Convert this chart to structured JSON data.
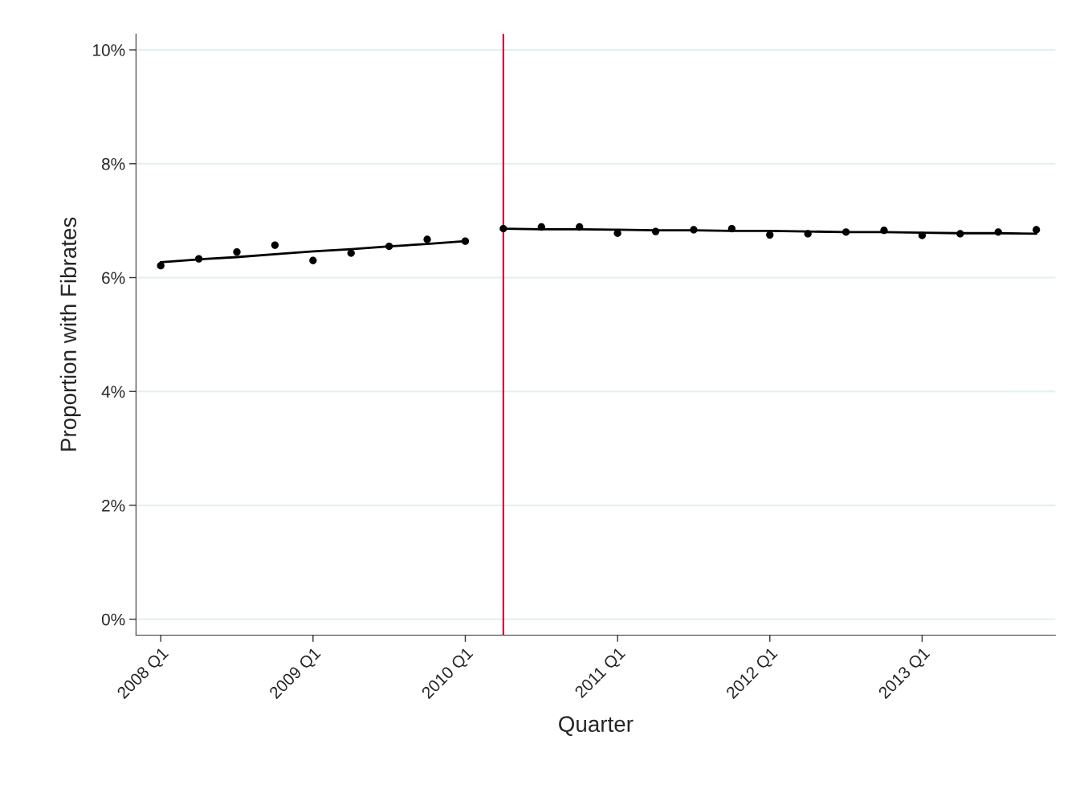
{
  "chart_data": {
    "type": "scatter",
    "xlabel": "Quarter",
    "ylabel": "Proportion with Fibrates",
    "categories": [
      "2008 Q1",
      null,
      null,
      null,
      "2009 Q1",
      null,
      null,
      null,
      "2010 Q1",
      null,
      null,
      null,
      "2011 Q1",
      null,
      null,
      null,
      "2012 Q1",
      null,
      null,
      null,
      "2013 Q1",
      null,
      null,
      null
    ],
    "ylim": [
      -0.28,
      10.28
    ],
    "yticks": [
      {
        "value": 0,
        "label": "0%"
      },
      {
        "value": 2,
        "label": "2%"
      },
      {
        "value": 4,
        "label": "4%"
      },
      {
        "value": 6,
        "label": "6%"
      },
      {
        "value": 8,
        "label": "8%"
      },
      {
        "value": 10,
        "label": "10%"
      }
    ],
    "grid": "y",
    "marker": "circle",
    "series": [
      {
        "color": "#000000",
        "values": [
          6.21,
          6.33,
          6.45,
          6.57,
          6.3,
          6.43,
          6.55,
          6.67,
          6.64,
          6.86,
          6.89,
          6.89,
          6.78,
          6.81,
          6.84,
          6.86,
          6.75,
          6.77,
          6.8,
          6.83,
          6.74,
          6.77,
          6.8,
          6.84
        ]
      },
      {
        "type": "line",
        "color": "#000000",
        "marker": "none",
        "line_style": "solid",
        "values": [
          6.27,
          6.32,
          6.36,
          6.41,
          6.46,
          6.5,
          6.55,
          6.59,
          6.64,
          null,
          null,
          null,
          null,
          null,
          null,
          null,
          null,
          null,
          null,
          null,
          null,
          null,
          null,
          null
        ]
      },
      {
        "type": "line",
        "color": "#000000",
        "marker": "none",
        "line_style": "solid",
        "values": [
          null,
          null,
          null,
          null,
          null,
          null,
          null,
          null,
          null,
          6.86,
          6.85,
          6.85,
          6.84,
          6.83,
          6.83,
          6.82,
          6.82,
          6.81,
          6.8,
          6.8,
          6.79,
          6.78,
          6.78,
          6.77
        ]
      }
    ]
  }
}
